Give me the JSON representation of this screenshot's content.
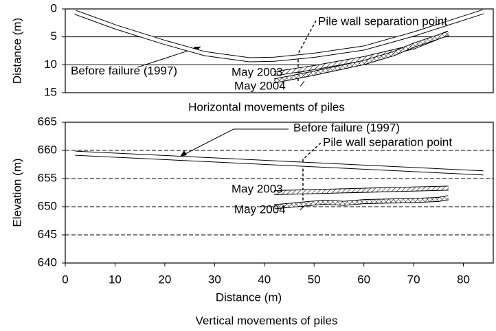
{
  "chart_data": [
    {
      "type": "line",
      "title": "Horizontal movements of piles",
      "ylabel": "Distance (m)",
      "xlim": [
        0,
        86
      ],
      "ylim": [
        0,
        15
      ],
      "yticks": [
        0,
        5,
        10,
        15
      ],
      "y_inverted": true,
      "grid": true,
      "grid_style": "solid",
      "annotations": [
        "Pile wall separation point"
      ],
      "series": [
        {
          "name": "Before failure (1997)",
          "color": "#000000",
          "pattern": "none",
          "x": [
            2,
            10,
            20,
            28,
            37,
            42,
            50,
            60,
            70,
            84
          ],
          "values": [
            0.6,
            3.2,
            6.0,
            8.0,
            9.1,
            9.0,
            8.3,
            7.0,
            4.5,
            0.5
          ]
        },
        {
          "name": "May 2003",
          "color": "#000000",
          "pattern": "hatch",
          "x": [
            42,
            50,
            60,
            70,
            77
          ],
          "values": [
            11.6,
            10.5,
            8.9,
            6.8,
            4.3
          ]
        },
        {
          "name": "May 2004",
          "color": "#000000",
          "pattern": "crosshatch",
          "x": [
            42,
            50,
            60,
            66,
            70,
            77
          ],
          "values": [
            12.9,
            11.5,
            9.6,
            8.0,
            6.5,
            4.4
          ]
        }
      ]
    },
    {
      "type": "line",
      "title": "Vertical movements of piles",
      "xlabel": "Distance (m)",
      "ylabel": "Elevation (m)",
      "xlim": [
        0,
        86
      ],
      "xticks": [
        0,
        10,
        20,
        30,
        40,
        50,
        60,
        70,
        80
      ],
      "ylim": [
        640,
        665
      ],
      "yticks": [
        640,
        645,
        650,
        655,
        660,
        665
      ],
      "y_inverted": false,
      "grid": true,
      "grid_style": "dashed",
      "annotations": [
        "Pile wall separation point"
      ],
      "series": [
        {
          "name": "Before failure (1997)",
          "color": "#000000",
          "pattern": "none",
          "x": [
            2,
            84
          ],
          "values": [
            659.5,
            656.0
          ]
        },
        {
          "name": "May 2003",
          "color": "#000000",
          "pattern": "hatch",
          "x": [
            42,
            77
          ],
          "values": [
            652.5,
            653.3
          ]
        },
        {
          "name": "May 2004",
          "color": "#000000",
          "pattern": "crosshatch",
          "x": [
            42,
            47,
            52,
            56,
            60,
            65,
            70,
            75,
            77
          ],
          "values": [
            650.0,
            650.4,
            650.8,
            650.6,
            650.9,
            651.0,
            651.1,
            651.3,
            651.6
          ]
        }
      ]
    }
  ]
}
